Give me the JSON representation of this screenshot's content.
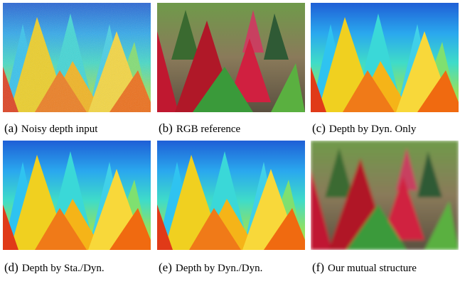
{
  "panels": [
    {
      "label": "(a)",
      "caption": "Noisy depth input"
    },
    {
      "label": "(b)",
      "caption": "RGB reference"
    },
    {
      "label": "(c)",
      "caption": "Depth by Dyn. Only"
    },
    {
      "label": "(d)",
      "caption": "Depth by Sta./Dyn."
    },
    {
      "label": "(e)",
      "caption": "Depth by Dyn./Dyn."
    },
    {
      "label": "(f)",
      "caption": "Our mutual structure"
    }
  ]
}
